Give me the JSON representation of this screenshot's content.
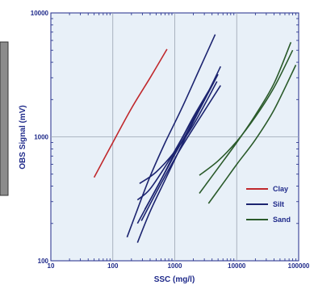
{
  "chart_data": {
    "type": "line",
    "x_scale": "log",
    "y_scale": "log",
    "xlim": [
      10,
      100000
    ],
    "ylim": [
      100,
      10000
    ],
    "xlabel": "SSC (mg/l)",
    "ylabel": "OBS Signal (mV)",
    "x_ticks": [
      "10",
      "100",
      "1000",
      "10000",
      "100000"
    ],
    "y_ticks": [
      "100",
      "1000",
      "10000"
    ],
    "grid": true,
    "legend_position": "lower-right",
    "plot_background": "#e8f0f8",
    "series": [
      {
        "name": "Clay",
        "color": "#c0282c",
        "lines": [
          {
            "x": [
              50,
              100,
              200,
              400,
              750
            ],
            "y": [
              470,
              900,
              1700,
              3000,
              5100
            ]
          }
        ]
      },
      {
        "name": "Silt",
        "color": "#1c2470",
        "lines": [
          {
            "x": [
              170,
              250,
              400,
              700,
              1300,
              2500,
              4500
            ],
            "y": [
              155,
              260,
              480,
              900,
              1700,
              3500,
              6700
            ]
          },
          {
            "x": [
              250,
              400,
              700,
              1300,
              2500,
              5000
            ],
            "y": [
              140,
              250,
              450,
              860,
              1650,
              3200
            ]
          },
          {
            "x": [
              250,
              500,
              1000,
              2000,
              4500
            ],
            "y": [
              200,
              380,
              720,
              1350,
              2900
            ]
          },
          {
            "x": [
              330,
              600,
              1100,
              2000,
              3800
            ],
            "y": [
              260,
              450,
              820,
              1450,
              2500
            ]
          },
          {
            "x": [
              250,
              400,
              800,
              1500,
              3000,
              5500
            ],
            "y": [
              310,
              380,
              640,
              1100,
              2000,
              3700
            ]
          },
          {
            "x": [
              290,
              600,
              1200,
              2500,
              5500
            ],
            "y": [
              210,
              420,
              780,
              1400,
              2600
            ]
          },
          {
            "x": [
              270,
              500,
              1000,
              2000,
              4800
            ],
            "y": [
              420,
              520,
              760,
              1250,
              2800
            ]
          }
        ]
      },
      {
        "name": "Sand",
        "color": "#2a5a2a",
        "lines": [
          {
            "x": [
              2500,
              5000,
              10000,
              20000,
              40000,
              75000
            ],
            "y": [
              350,
              560,
              900,
              1500,
              2700,
              5800
            ]
          },
          {
            "x": [
              2500,
              5000,
              10000,
              20000,
              40000,
              80000
            ],
            "y": [
              490,
              640,
              920,
              1450,
              2500,
              5000
            ]
          },
          {
            "x": [
              3500,
              6000,
              10000,
              20000,
              40000,
              90000
            ],
            "y": [
              290,
              420,
              600,
              950,
              1650,
              3800
            ]
          }
        ]
      }
    ]
  }
}
